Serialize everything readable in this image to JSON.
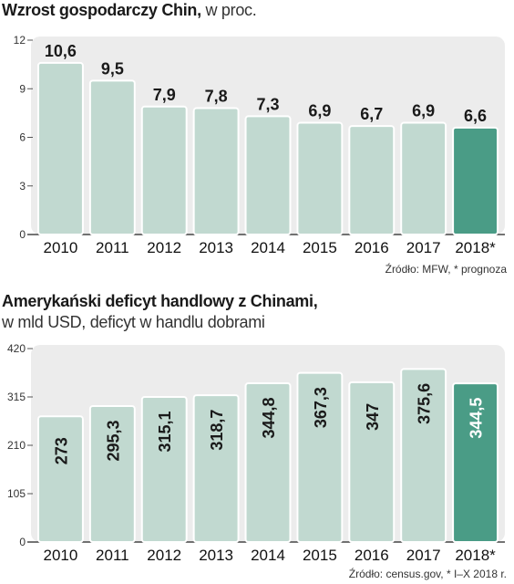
{
  "chart_data": [
    {
      "type": "bar",
      "title": "Wzrost gospodarczy Chin,",
      "subtitle": "w proc.",
      "categories": [
        "2010",
        "2011",
        "2012",
        "2013",
        "2014",
        "2015",
        "2016",
        "2017",
        "2018*"
      ],
      "values": [
        10.6,
        9.5,
        7.9,
        7.8,
        7.3,
        6.9,
        6.7,
        6.9,
        6.6
      ],
      "value_labels": [
        "10,6",
        "9,5",
        "7,9",
        "7,8",
        "7,3",
        "6,9",
        "6,7",
        "6,9",
        "6,6"
      ],
      "yticks": [
        "0",
        "3",
        "6",
        "9",
        "12"
      ],
      "ylim": [
        0,
        12
      ],
      "grid": false,
      "colors": {
        "bar": "#c1d9d0",
        "highlight": "#4a9c86",
        "background": "#ececec"
      },
      "highlight_index": 8,
      "source": "Źródło: MFW, * prognoza"
    },
    {
      "type": "bar",
      "title": "Amerykański deficyt handlowy z Chinami,",
      "subtitle": "w mld USD, deficyt w handlu dobrami",
      "categories": [
        "2010",
        "2011",
        "2012",
        "2013",
        "2014",
        "2015",
        "2016",
        "2017",
        "2018*"
      ],
      "values": [
        273,
        295.3,
        315.1,
        318.7,
        344.8,
        367.3,
        347,
        375.6,
        344.5
      ],
      "value_labels": [
        "273",
        "295,3",
        "315,1",
        "318,7",
        "344,8",
        "367,3",
        "347",
        "375,6",
        "344,5"
      ],
      "yticks": [
        "0",
        "105",
        "210",
        "315",
        "420"
      ],
      "ylim": [
        0,
        420
      ],
      "grid": false,
      "colors": {
        "bar": "#c1d9d0",
        "highlight": "#4a9c86",
        "background": "#ececec"
      },
      "highlight_index": 8,
      "source": "Źródło: census.gov, * I–X 2018 r."
    }
  ]
}
